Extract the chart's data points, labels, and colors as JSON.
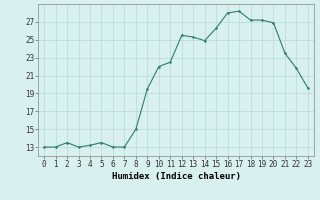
{
  "x": [
    0,
    1,
    2,
    3,
    4,
    5,
    6,
    7,
    8,
    9,
    10,
    11,
    12,
    13,
    14,
    15,
    16,
    17,
    18,
    19,
    20,
    21,
    22,
    23
  ],
  "y": [
    13,
    13,
    13.5,
    13,
    13.2,
    13.5,
    13,
    13,
    15,
    19.5,
    22,
    22.5,
    25.5,
    25.3,
    24.9,
    26.3,
    28.0,
    28.2,
    27.2,
    27.2,
    26.9,
    23.5,
    21.8,
    19.6
  ],
  "line_color": "#2e7d6e",
  "marker_color": "#2e7d6e",
  "bg_color": "#d8f0ee",
  "grid_color_major": "#b8d8d5",
  "grid_color_minor": "#cce8e5",
  "xlabel": "Humidex (Indice chaleur)",
  "ylim": [
    12,
    29
  ],
  "yticks": [
    13,
    15,
    17,
    19,
    21,
    23,
    25,
    27
  ],
  "xticks": [
    0,
    1,
    2,
    3,
    4,
    5,
    6,
    7,
    8,
    9,
    10,
    11,
    12,
    13,
    14,
    15,
    16,
    17,
    18,
    19,
    20,
    21,
    22,
    23
  ],
  "tick_fontsize": 5.5,
  "label_fontsize": 6.5
}
